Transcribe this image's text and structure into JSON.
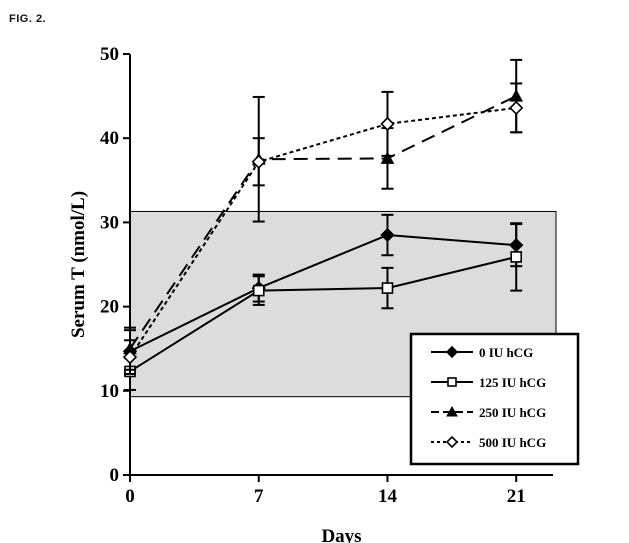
{
  "figure_label": "FIG. 2.",
  "chart_data": {
    "type": "line",
    "xlabel": "Days",
    "ylabel": "Serum T (nmol/L)",
    "x": [
      0,
      7,
      14,
      21
    ],
    "xticks": [
      "0",
      "7",
      "14",
      "21"
    ],
    "yticks": [
      "0",
      "10",
      "20",
      "30",
      "40",
      "50"
    ],
    "xlim": [
      0,
      23
    ],
    "ylim": [
      0,
      50
    ],
    "grid": false,
    "legend_position": "bottom-right",
    "reference_band": {
      "ymin": 9.3,
      "ymax": 31.3,
      "color": "#dcdcdc"
    },
    "series": [
      {
        "name": "0 IU hCG",
        "marker": "filled-diamond",
        "dash": "solid",
        "values": [
          14.7,
          22.2,
          28.5,
          27.3
        ],
        "errors": [
          2.5,
          1.6,
          2.4,
          2.5
        ]
      },
      {
        "name": "125 IU hCG",
        "marker": "open-square",
        "dash": "solid",
        "values": [
          12.3,
          21.9,
          22.2,
          25.9
        ],
        "errors": [
          2.2,
          1.7,
          2.4,
          4.0
        ]
      },
      {
        "name": "250 IU hCG",
        "marker": "filled-triangle",
        "dash": "long-dash",
        "values": [
          15.0,
          37.5,
          37.6,
          45.0
        ],
        "errors": [
          2.5,
          7.4,
          3.6,
          4.3
        ]
      },
      {
        "name": "500 IU hCG",
        "marker": "open-diamond",
        "dash": "dotted",
        "values": [
          14.0,
          37.2,
          41.7,
          43.6
        ],
        "errors": [
          2.0,
          2.8,
          3.8,
          2.9
        ]
      }
    ]
  }
}
